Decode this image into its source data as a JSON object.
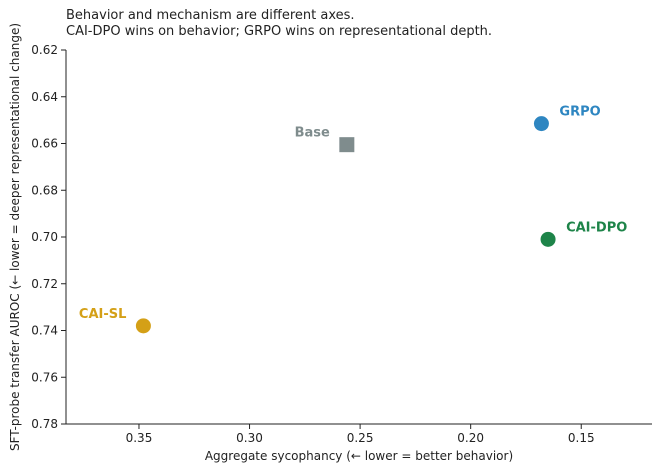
{
  "chart_data": {
    "type": "scatter",
    "title": "Behavior and mechanism are different axes.",
    "subtitle": "CAI-DPO wins on behavior; GRPO wins on representational depth.",
    "xlabel": "Aggregate sycophancy  (← lower = better behavior)",
    "ylabel": "SFT-probe transfer AUROC  (← lower = deeper representational change)",
    "xlim": [
      0.383,
      0.118
    ],
    "ylim": [
      0.62,
      0.78
    ],
    "x_inverted": true,
    "y_inverted": true,
    "xticks": [
      {
        "value": 0.35,
        "label": "0.35"
      },
      {
        "value": 0.3,
        "label": "0.30"
      },
      {
        "value": 0.25,
        "label": "0.25"
      },
      {
        "value": 0.2,
        "label": "0.20"
      },
      {
        "value": 0.15,
        "label": "0.15"
      }
    ],
    "yticks": [
      {
        "value": 0.62,
        "label": "0.62"
      },
      {
        "value": 0.64,
        "label": "0.64"
      },
      {
        "value": 0.66,
        "label": "0.66"
      },
      {
        "value": 0.68,
        "label": "0.68"
      },
      {
        "value": 0.7,
        "label": "0.70"
      },
      {
        "value": 0.72,
        "label": "0.72"
      },
      {
        "value": 0.74,
        "label": "0.74"
      },
      {
        "value": 0.76,
        "label": "0.76"
      },
      {
        "value": 0.78,
        "label": "0.78"
      }
    ],
    "grid": false,
    "points": [
      {
        "name": "Base",
        "x": 0.256,
        "y": 0.6605,
        "marker": "square",
        "color": "#7f8c8d",
        "label_side": "upper-left"
      },
      {
        "name": "GRPO",
        "x": 0.168,
        "y": 0.6515,
        "marker": "circle",
        "color": "#2e86c1",
        "label_side": "upper-right"
      },
      {
        "name": "CAI-DPO",
        "x": 0.165,
        "y": 0.701,
        "marker": "circle",
        "color": "#1e8449",
        "label_side": "upper-right"
      },
      {
        "name": "CAI-SL",
        "x": 0.348,
        "y": 0.738,
        "marker": "circle",
        "color": "#d4a017",
        "label_side": "upper-left"
      }
    ]
  }
}
